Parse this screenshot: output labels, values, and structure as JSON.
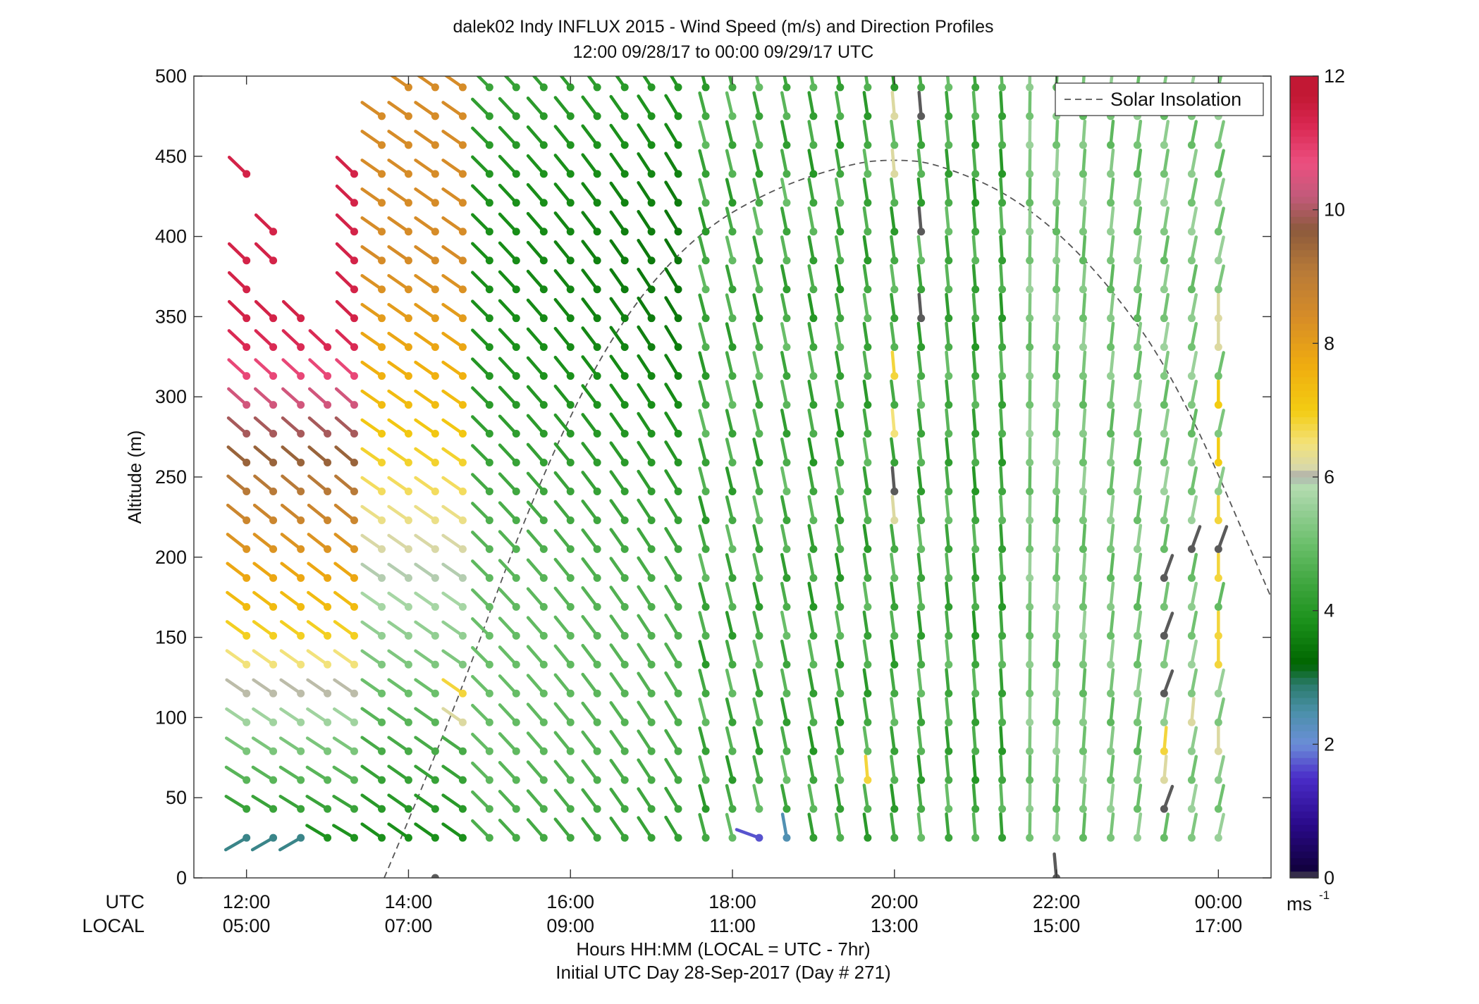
{
  "chart_data": {
    "type": "scatter",
    "title": "dalek02 Indy INFLUX 2015 - Wind Speed (m/s) and Direction Profiles",
    "subtitle": "12:00 09/28/17 to 00:00 09/29/17  UTC",
    "xlabel": "Hours HH:MM  (LOCAL = UTC - 7hr)",
    "xlabel2": "Initial UTC Day 28-Sep-2017 (Day # 271)",
    "ylabel": "Altitude (m)",
    "xlim": [
      11.35,
      24.65
    ],
    "ylim": [
      0,
      500
    ],
    "x_row_labels": [
      "UTC",
      "LOCAL"
    ],
    "x_ticks_hours": [
      12,
      14,
      16,
      18,
      20,
      22,
      24
    ],
    "x_ticks_utc": [
      "12:00",
      "14:00",
      "16:00",
      "18:00",
      "20:00",
      "22:00",
      "00:00"
    ],
    "x_ticks_local": [
      "05:00",
      "07:00",
      "09:00",
      "11:00",
      "13:00",
      "15:00",
      "17:00"
    ],
    "y_ticks": [
      "0",
      "50",
      "100",
      "150",
      "200",
      "250",
      "300",
      "350",
      "400",
      "450",
      "500"
    ],
    "legend": {
      "entries": [
        "Solar Insolation"
      ],
      "position": "top-right",
      "style": "dashed",
      "color": "#555555"
    },
    "solar_insolation": {
      "x": [
        13.7,
        14.5,
        15.5,
        16.5,
        17.5,
        18.5,
        19.5,
        20.0,
        20.5,
        21.5,
        22.5,
        23.5,
        24.65
      ],
      "y": [
        0,
        95,
        235,
        340,
        400,
        430,
        446,
        448,
        446,
        425,
        380,
        310,
        175
      ]
    },
    "colorbar": {
      "unit": "ms",
      "unit_superscript": "-1",
      "min": 0,
      "max": 12,
      "ticks": [
        "0",
        "2",
        "4",
        "6",
        "8",
        "10",
        "12"
      ]
    },
    "wind": {
      "times": [
        12.0,
        12.33,
        12.67,
        13.0,
        13.33,
        13.67,
        14.0,
        14.33,
        14.67,
        15.0,
        15.33,
        15.67,
        16.0,
        16.33,
        16.67,
        17.0,
        17.33,
        17.67,
        18.0,
        18.33,
        18.67,
        19.0,
        19.33,
        19.67,
        20.0,
        20.33,
        20.67,
        21.0,
        21.33,
        21.67,
        22.0,
        22.33,
        22.67,
        23.0,
        23.33,
        23.67,
        24.0
      ],
      "altitudes": [
        25,
        43,
        61,
        79,
        97,
        115,
        133,
        151,
        169,
        187,
        205,
        223,
        241,
        259,
        277,
        295,
        313,
        331,
        349,
        367,
        385,
        403,
        421,
        439,
        457,
        475,
        493
      ],
      "note_dir": "degrees, direction the wind blows from"
    },
    "wind_overrides": [
      {
        "t": 12.0,
        "a": 25,
        "s": 2.7,
        "d": 300
      },
      {
        "t": 12.33,
        "a": 25,
        "s": 2.7,
        "d": 300
      },
      {
        "t": 12.67,
        "a": 25,
        "s": 2.7,
        "d": 300
      },
      {
        "t": 18.33,
        "a": 25,
        "s": 1.7,
        "d": 250
      },
      {
        "t": 18.67,
        "a": 25,
        "s": 2.4,
        "d": 190
      },
      {
        "t": 14.33,
        "a": 0,
        "s": 0,
        "d": 300
      },
      {
        "t": 22.0,
        "a": 0,
        "s": 0,
        "d": 185
      },
      {
        "t": 20.0,
        "a": 439,
        "s": 6.2,
        "d": 185
      },
      {
        "t": 20.0,
        "a": 475,
        "s": 6.2,
        "d": 185
      },
      {
        "t": 20.33,
        "a": 475,
        "s": 0,
        "d": 185
      },
      {
        "t": 20.33,
        "a": 403,
        "s": 0,
        "d": 185
      },
      {
        "t": 20.33,
        "a": 349,
        "s": 0,
        "d": 185
      },
      {
        "t": 19.67,
        "a": 61,
        "s": 6.8,
        "d": 185
      },
      {
        "t": 20.0,
        "a": 313,
        "s": 6.8,
        "d": 185
      },
      {
        "t": 20.0,
        "a": 277,
        "s": 6.5,
        "d": 185
      },
      {
        "t": 20.0,
        "a": 241,
        "s": 0,
        "d": 185
      },
      {
        "t": 20.0,
        "a": 223,
        "s": 6.2,
        "d": 185
      },
      {
        "t": 23.33,
        "a": 43,
        "s": 0,
        "d": 160
      },
      {
        "t": 23.33,
        "a": 115,
        "s": 0,
        "d": 160
      },
      {
        "t": 23.33,
        "a": 151,
        "s": 0,
        "d": 160
      },
      {
        "t": 23.33,
        "a": 187,
        "s": 0,
        "d": 160
      },
      {
        "t": 23.33,
        "a": 61,
        "s": 6.2,
        "d": 175
      },
      {
        "t": 23.33,
        "a": 79,
        "s": 6.8,
        "d": 175
      },
      {
        "t": 23.67,
        "a": 205,
        "s": 0,
        "d": 160
      },
      {
        "t": 24.0,
        "a": 205,
        "s": 0,
        "d": 160
      },
      {
        "t": 23.67,
        "a": 97,
        "s": 6.2,
        "d": 175
      },
      {
        "t": 24.0,
        "a": 259,
        "s": 7.0,
        "d": 180
      },
      {
        "t": 24.0,
        "a": 295,
        "s": 7.0,
        "d": 180
      },
      {
        "t": 24.0,
        "a": 223,
        "s": 6.8,
        "d": 180
      },
      {
        "t": 24.0,
        "a": 187,
        "s": 6.8,
        "d": 180
      },
      {
        "t": 24.0,
        "a": 151,
        "s": 6.8,
        "d": 180
      },
      {
        "t": 24.0,
        "a": 133,
        "s": 6.8,
        "d": 180
      },
      {
        "t": 24.0,
        "a": 79,
        "s": 6.2,
        "d": 180
      },
      {
        "t": 24.0,
        "a": 331,
        "s": 6.2,
        "d": 180
      },
      {
        "t": 24.0,
        "a": 349,
        "s": 6.2,
        "d": 180
      },
      {
        "t": 14.67,
        "a": 115,
        "s": 6.8,
        "d": 235
      },
      {
        "t": 14.67,
        "a": 97,
        "s": 6.2,
        "d": 235
      }
    ]
  }
}
